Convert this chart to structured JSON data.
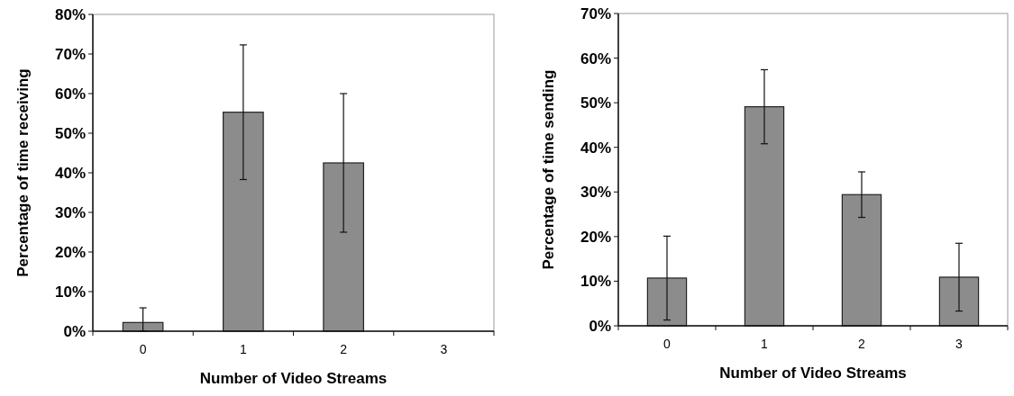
{
  "chart_data": [
    {
      "type": "bar",
      "xlabel": "Number of Video Streams",
      "ylabel": "Percentage of time receiving",
      "categories": [
        "0",
        "1",
        "2",
        "3"
      ],
      "values": [
        2.2,
        55.3,
        42.5,
        0
      ],
      "errors": [
        [
          0,
          5.9
        ],
        17,
        17.5,
        null
      ],
      "color": "#8c8c8c",
      "ylim": [
        0,
        80
      ],
      "yticks": [
        {
          "value": 0,
          "label": "0%"
        },
        {
          "value": 10,
          "label": "10%"
        },
        {
          "value": 20,
          "label": "20%"
        },
        {
          "value": 30,
          "label": "30%"
        },
        {
          "value": 40,
          "label": "40%"
        },
        {
          "value": 50,
          "label": "50%"
        },
        {
          "value": 60,
          "label": "60%"
        },
        {
          "value": 70,
          "label": "70%"
        },
        {
          "value": 80,
          "label": "80%"
        }
      ]
    },
    {
      "type": "bar",
      "xlabel": "Number of Video Streams",
      "ylabel": "Percentage of time sending",
      "categories": [
        "0",
        "1",
        "2",
        "3"
      ],
      "values": [
        10.7,
        49.1,
        29.4,
        10.9
      ],
      "errors": [
        9.4,
        8.3,
        5.1,
        7.6
      ],
      "color": "#8c8c8c",
      "ylim": [
        0,
        70
      ],
      "yticks": [
        {
          "value": 0,
          "label": "0%"
        },
        {
          "value": 10,
          "label": "10%"
        },
        {
          "value": 20,
          "label": "20%"
        },
        {
          "value": 30,
          "label": "30%"
        },
        {
          "value": 40,
          "label": "40%"
        },
        {
          "value": 50,
          "label": "50%"
        },
        {
          "value": 60,
          "label": "60%"
        },
        {
          "value": 70,
          "label": "70%"
        }
      ]
    }
  ]
}
